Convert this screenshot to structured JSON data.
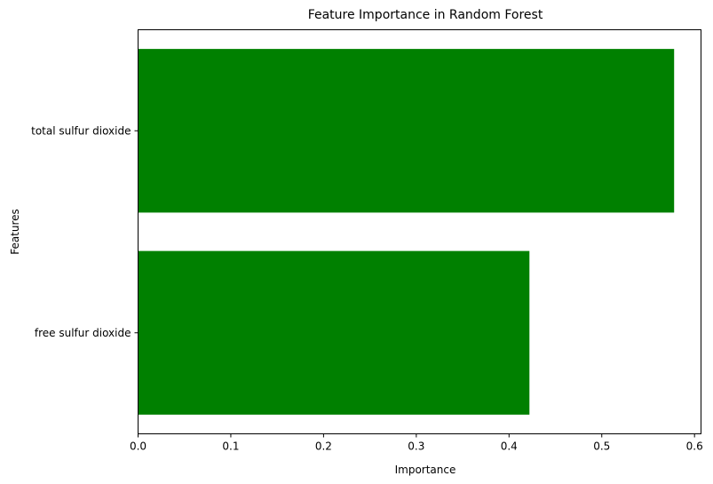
{
  "chart_data": {
    "type": "bar",
    "orientation": "horizontal",
    "title": "Feature Importance in Random Forest",
    "xlabel": "Importance",
    "ylabel": "Features",
    "categories": [
      "total sulfur dioxide",
      "free sulfur dioxide"
    ],
    "values": [
      0.578,
      0.422
    ],
    "xlim": [
      0,
      0.607
    ],
    "xticks": [
      "0.0",
      "0.1",
      "0.2",
      "0.3",
      "0.4",
      "0.5",
      "0.6"
    ],
    "grid": false,
    "legend": "none",
    "bar_color": "#008000"
  }
}
